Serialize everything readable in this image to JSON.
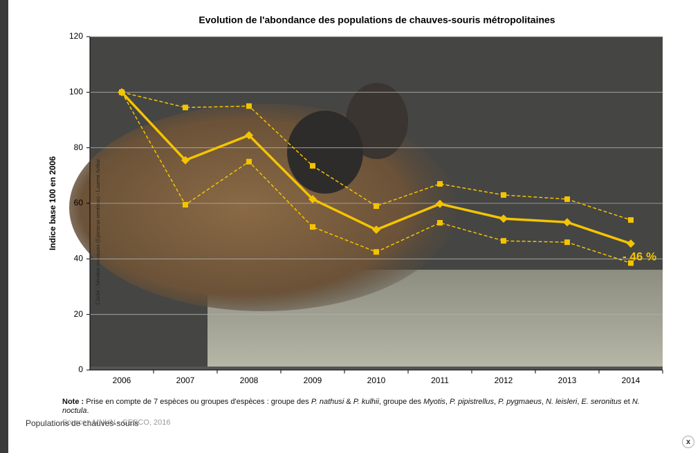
{
  "chart_data": {
    "type": "line",
    "title": "Evolution de l'abondance des populations de chauves-souris métropolitaines",
    "y_label": "Indice base 100 en 2006",
    "categories": [
      "2006",
      "2007",
      "2008",
      "2009",
      "2010",
      "2011",
      "2012",
      "2013",
      "2014"
    ],
    "series": [
      {
        "color": "#f5c400",
        "marker": "square",
        "dashed": true,
        "values": [
          100,
          94.5,
          95,
          73.5,
          59,
          67,
          63,
          61.5,
          54
        ]
      },
      {
        "color": "#f5c400",
        "marker": "square",
        "dashed": true,
        "values": [
          100,
          59.5,
          75,
          51.5,
          42.5,
          53,
          46.5,
          46,
          38.5
        ]
      },
      {
        "color": "#f5c400",
        "marker": "diamond",
        "dashed": false,
        "values": [
          100,
          75.5,
          84.5,
          61.5,
          50.5,
          59.8,
          54.5,
          53.2,
          45.5
        ]
      }
    ],
    "annotation": "- 46 %",
    "photo_credit": "Cliché : Sérotine commune (Eptesicus serotinus) - Laurent Arthur",
    "ylim": [
      0,
      120
    ],
    "yticks": [
      0,
      20,
      40,
      60,
      80,
      100,
      120
    ],
    "grid": true
  },
  "note": {
    "label": "Note :",
    "parts": [
      "Prise en compte de 7 espèces ou groupes d'espèces : groupe des ",
      "P. nathusi",
      " & ",
      "P. kulhii",
      ", groupe des ",
      "Myotis",
      ", ",
      "P. pipistrellus",
      ", ",
      "P. pygmaeus",
      ", ",
      "N. leisleri",
      ", ",
      "E. seronitus",
      " et ",
      "N. noctula",
      "."
    ]
  },
  "source": "Source : MNHN - CESCO, 2016",
  "caption": "Populations de chauves-souris",
  "close": "x"
}
